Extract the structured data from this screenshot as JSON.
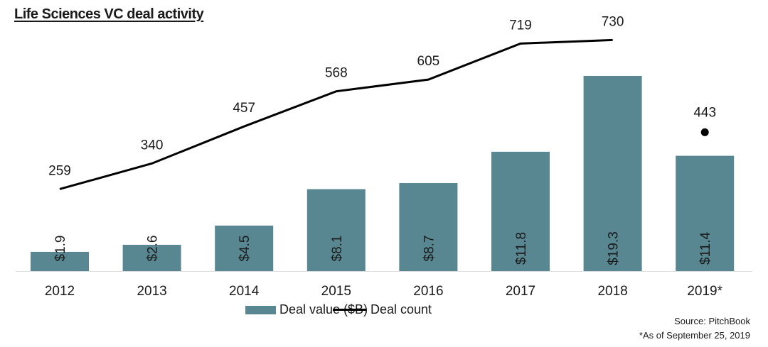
{
  "chart_data": {
    "type": "bar",
    "title": "Life Sciences VC deal activity",
    "categories": [
      "2012",
      "2013",
      "2014",
      "2015",
      "2016",
      "2017",
      "2018",
      "2019*"
    ],
    "series": [
      {
        "name": "Deal value ($B)",
        "type": "bar",
        "values": [
          1.9,
          2.6,
          4.5,
          8.1,
          8.7,
          11.8,
          19.3,
          11.4
        ],
        "labels": [
          "$1.9",
          "$2.6",
          "$4.5",
          "$8.1",
          "$8.7",
          "$11.8",
          "$19.3",
          "$11.4"
        ],
        "color": "#588791"
      },
      {
        "name": "Deal count",
        "type": "line",
        "values": [
          259,
          340,
          457,
          568,
          605,
          719,
          730,
          443
        ],
        "color": "#000000",
        "note": "2019* shown as separate point"
      }
    ],
    "xlabel": "",
    "ylabel": "",
    "grid": false,
    "legend_position": "bottom"
  },
  "footer": {
    "source": "Source: PitchBook",
    "note": "*As of September 25, 2019"
  }
}
